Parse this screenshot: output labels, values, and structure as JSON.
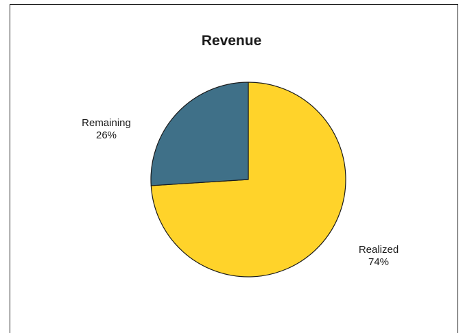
{
  "colors": {
    "background": "#ffffff",
    "frame": "#1a1a1a",
    "realized": "#FFD32A",
    "remaining": "#3F7088",
    "slice_outline": "#1a1a1a"
  },
  "chart_data": {
    "type": "pie",
    "title": "Revenue",
    "legend": "none",
    "slices": [
      {
        "label": "Realized",
        "value": 74,
        "display": "74%",
        "color": "#FFD32A"
      },
      {
        "label": "Remaining",
        "value": 26,
        "display": "26%",
        "color": "#3F7088"
      }
    ]
  }
}
